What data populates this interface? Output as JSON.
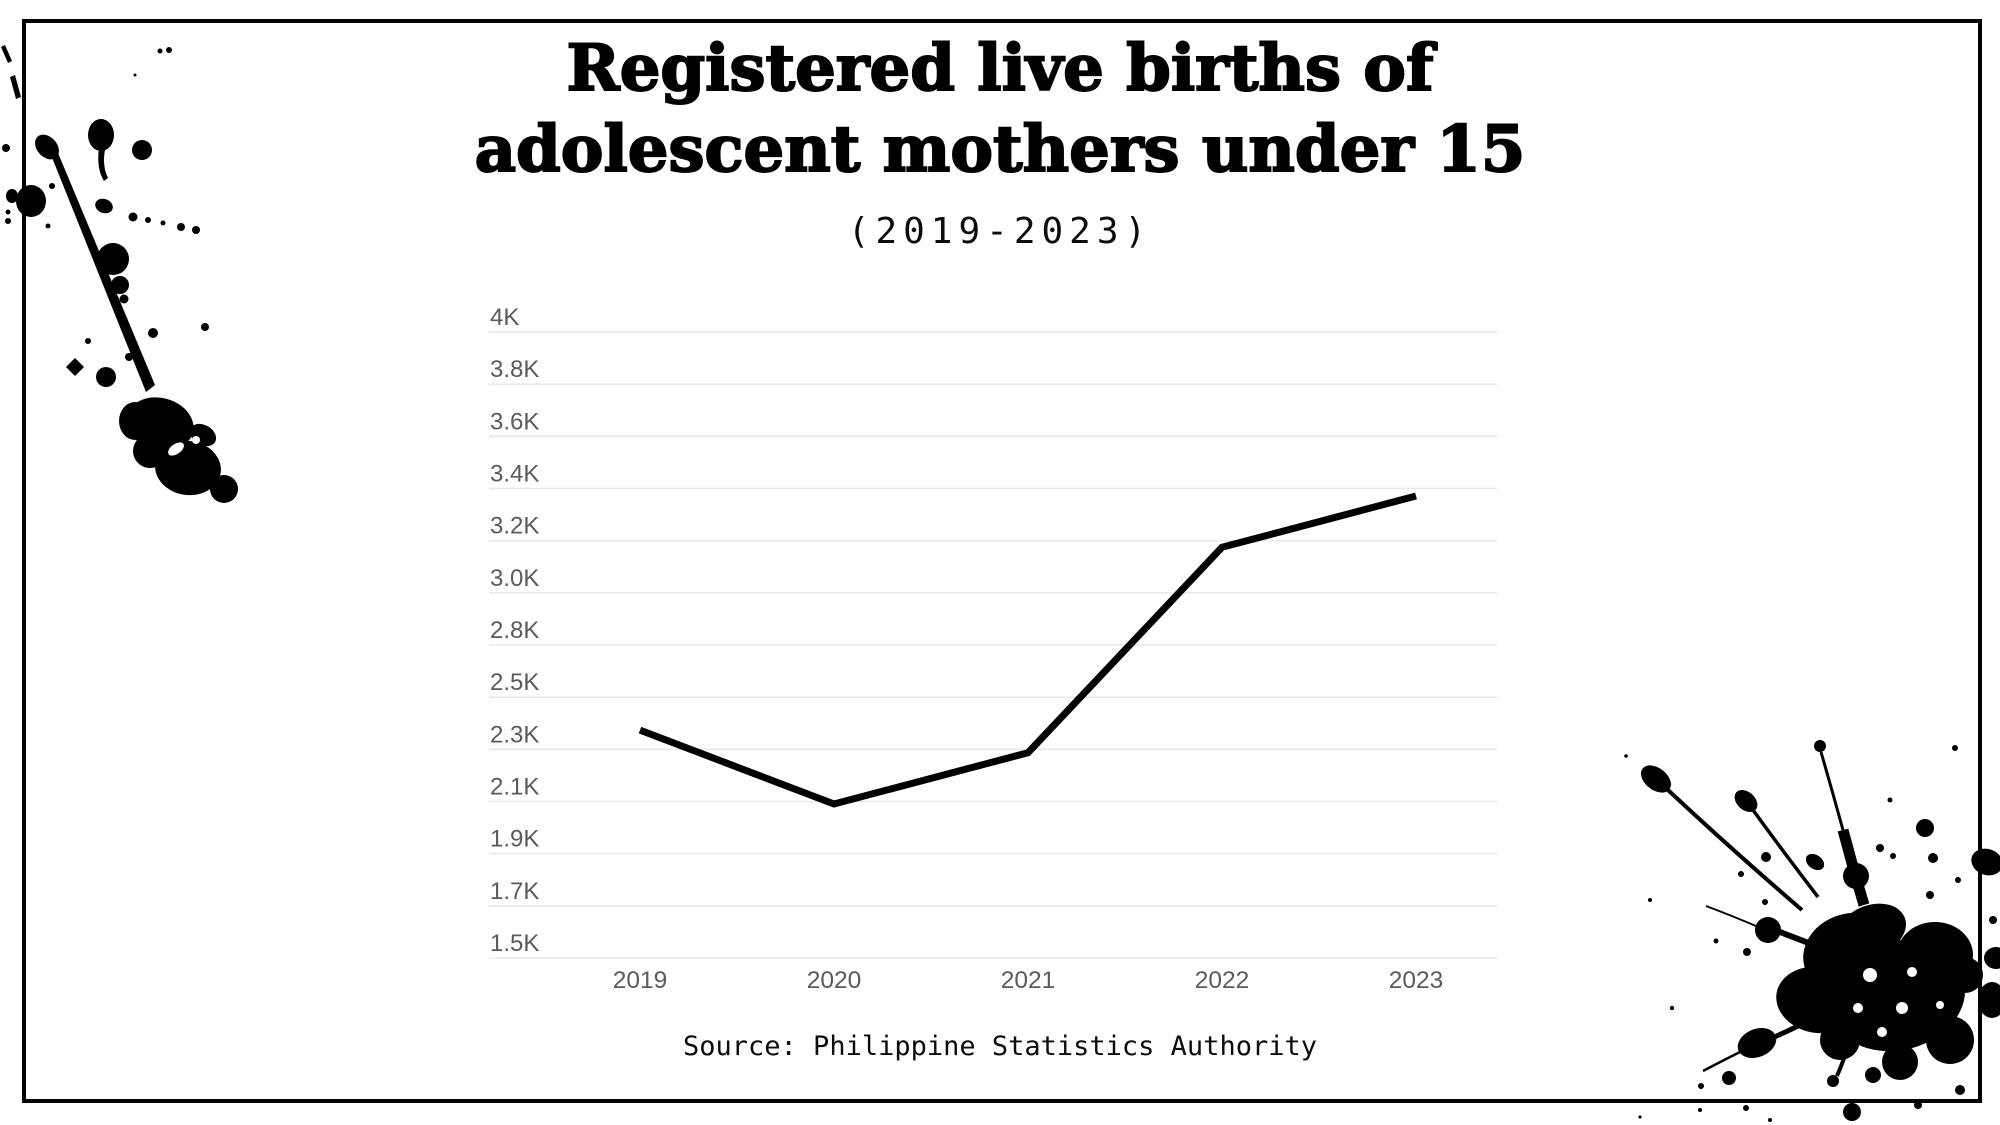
{
  "header": {
    "title": "Registered live births of adolescent mothers under 15",
    "subtitle": "(2019-2023)"
  },
  "footer": {
    "source": "Source: Philippine Statistics Authority"
  },
  "chart_data": {
    "type": "line",
    "title": "Registered live births of adolescent mothers under 15",
    "subtitle": "(2019-2023)",
    "x": [
      "2019",
      "2020",
      "2021",
      "2022",
      "2023"
    ],
    "series": [
      {
        "name": "Registered live births",
        "values": [
          2410,
          2115,
          2320,
          3140,
          3345
        ]
      }
    ],
    "xlabel": "",
    "ylabel": "",
    "y_axis": {
      "range": [
        1500,
        4000
      ],
      "tick_labels_top_to_bottom": [
        "4K",
        "3.8K",
        "3.6K",
        "3.4K",
        "3.2K",
        "3.0K",
        "2.8K",
        "2.5K",
        "2.3K",
        "2.1K",
        "1.9K",
        "1.7K",
        "1.5K"
      ]
    },
    "grid": true,
    "legend": "none",
    "source": "Source: Philippine Statistics Authority"
  },
  "colors": {
    "background": "#ffffff",
    "frame": "#000000",
    "title_text": "#000000",
    "tick_label": "#5b5b5b",
    "gridline": "#e9e9e9",
    "data_line": "#000000",
    "ink": "#000000"
  }
}
